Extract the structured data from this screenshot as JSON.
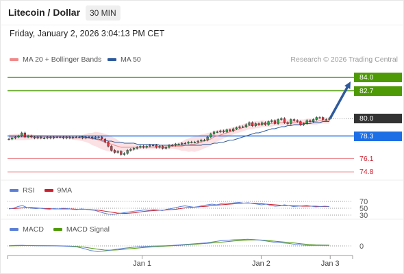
{
  "header": {
    "title": "Litecoin / Dollar",
    "interval": "30 MIN",
    "datetime": "Friday, January 2, 2026 3:04:13 PM CET"
  },
  "legend": {
    "ma20_label": "MA 20 + Bollinger Bands",
    "ma50_label": "MA 50",
    "credit": "Research © 2026 Trading Central",
    "rsi_label": "RSI",
    "rsi_ma_label": "9MA",
    "macd_label": "MACD",
    "macd_signal_label": "MACD Signal"
  },
  "colors": {
    "resistance": "#4e9a06",
    "current": "#333333",
    "pivot": "#1e6fe6",
    "support": "#e0303c",
    "ma20": "#f08a8a",
    "ma50": "#2e5a9c",
    "bollinger": "#fadadd",
    "arrow": "#2e5a9c",
    "rsi": "#5b7fd6",
    "rsi_ma": "#cc1f2e",
    "macd": "#5b7fd6",
    "macd_signal": "#4e9a06"
  },
  "chart_data": [
    {
      "type": "candlestick",
      "ylim": [
        74.0,
        85.0
      ],
      "levels": [
        {
          "label": "84.0",
          "value": 84.0,
          "kind": "resistance"
        },
        {
          "label": "82.7",
          "value": 82.7,
          "kind": "resistance"
        },
        {
          "label": "80.0",
          "value": 80.0,
          "kind": "current"
        },
        {
          "label": "78.3",
          "value": 78.3,
          "kind": "pivot"
        },
        {
          "label": "76.1",
          "value": 76.1,
          "kind": "support"
        },
        {
          "label": "74.8",
          "value": 74.8,
          "kind": "support"
        }
      ],
      "close": [
        78.0,
        78.1,
        78.2,
        78.3,
        78.6,
        78.2,
        78.3,
        78.2,
        78.1,
        78.2,
        78.1,
        78.1,
        78.2,
        78.1,
        78.2,
        78.2,
        78.2,
        78.1,
        78.2,
        78.1,
        78.2,
        78.2,
        78.2,
        78.1,
        78.2,
        78.2,
        78.1,
        78.2,
        78.2,
        78.0,
        77.7,
        77.3,
        76.9,
        76.7,
        76.8,
        76.5,
        76.6,
        76.9,
        77.0,
        77.1,
        77.2,
        77.3,
        77.2,
        77.3,
        77.4,
        77.4,
        77.2,
        77.3,
        77.1,
        77.2,
        77.4,
        77.4,
        77.5,
        77.5,
        77.6,
        77.6,
        77.7,
        77.7,
        77.7,
        77.8,
        77.9,
        77.9,
        78.2,
        78.5,
        78.7,
        78.7,
        78.8,
        78.7,
        78.9,
        78.8,
        79.0,
        79.1,
        79.2,
        79.2,
        79.4,
        79.6,
        79.3,
        79.5,
        79.4,
        79.6,
        79.4,
        79.7,
        79.8,
        79.5,
        79.9,
        80.0,
        79.6,
        79.5,
        79.9,
        79.8,
        79.7,
        79.4,
        79.5,
        79.8,
        79.7,
        79.9,
        80.1,
        80.1,
        79.9,
        79.9,
        80.0
      ],
      "ma20": [
        78.2,
        78.2,
        78.2,
        78.2,
        78.2,
        78.2,
        78.2,
        78.2,
        78.2,
        78.2,
        78.2,
        78.2,
        78.2,
        78.2,
        78.2,
        78.2,
        78.2,
        78.2,
        78.2,
        78.2,
        78.1,
        78.1,
        78.1,
        78.1,
        78.1,
        78.1,
        78.0,
        78.0,
        77.9,
        77.8,
        77.7,
        77.6,
        77.5,
        77.4,
        77.3,
        77.2,
        77.2,
        77.2,
        77.2,
        77.2,
        77.2,
        77.2,
        77.2,
        77.2,
        77.2,
        77.2,
        77.2,
        77.2,
        77.2,
        77.2,
        77.2,
        77.3,
        77.3,
        77.3,
        77.3,
        77.4,
        77.4,
        77.5,
        77.5,
        77.6,
        77.7,
        77.8,
        77.9,
        78.0,
        78.2,
        78.3,
        78.4,
        78.5,
        78.6,
        78.7,
        78.8,
        78.9,
        79.0,
        79.1,
        79.2,
        79.3,
        79.3,
        79.4,
        79.4,
        79.5,
        79.5,
        79.5,
        79.5,
        79.6,
        79.6,
        79.6,
        79.6,
        79.6,
        79.6,
        79.6,
        79.6,
        79.6,
        79.6,
        79.7,
        79.7,
        79.7,
        79.7,
        79.8,
        79.8,
        79.8,
        79.8
      ],
      "ma50": [
        78.3,
        78.3,
        78.3,
        78.3,
        78.3,
        78.3,
        78.3,
        78.3,
        78.3,
        78.3,
        78.3,
        78.3,
        78.3,
        78.3,
        78.3,
        78.3,
        78.3,
        78.3,
        78.3,
        78.3,
        78.3,
        78.3,
        78.3,
        78.2,
        78.2,
        78.1,
        78.1,
        78.0,
        78.0,
        77.9,
        77.9,
        77.8,
        77.8,
        77.7,
        77.7,
        77.7,
        77.6,
        77.6,
        77.6,
        77.6,
        77.5,
        77.5,
        77.5,
        77.5,
        77.5,
        77.5,
        77.5,
        77.4,
        77.4,
        77.4,
        77.4,
        77.4,
        77.4,
        77.4,
        77.4,
        77.4,
        77.4,
        77.4,
        77.4,
        77.4,
        77.4,
        77.5,
        77.5,
        77.5,
        77.6,
        77.6,
        77.7,
        77.7,
        77.8,
        77.9,
        77.9,
        78.0,
        78.1,
        78.2,
        78.3,
        78.4,
        78.5,
        78.6,
        78.6,
        78.7,
        78.8,
        78.9,
        79.0,
        79.0,
        79.1,
        79.2,
        79.2,
        79.3,
        79.3,
        79.4,
        79.4,
        79.4,
        79.5,
        79.5,
        79.5,
        79.6,
        79.6,
        79.6,
        79.7,
        79.7,
        79.7
      ],
      "band_width": [
        0.25,
        0.25,
        0.3,
        0.3,
        0.3,
        0.3,
        0.28,
        0.25,
        0.22,
        0.2,
        0.2,
        0.18,
        0.15,
        0.15,
        0.15,
        0.15,
        0.15,
        0.15,
        0.15,
        0.15,
        0.15,
        0.2,
        0.25,
        0.3,
        0.4,
        0.5,
        0.6,
        0.7,
        0.75,
        0.8,
        0.8,
        0.8,
        0.75,
        0.7,
        0.6,
        0.5,
        0.45,
        0.4,
        0.35,
        0.3,
        0.25,
        0.2,
        0.2,
        0.2,
        0.2,
        0.2,
        0.2,
        0.2,
        0.2,
        0.2,
        0.22,
        0.25,
        0.3,
        0.35,
        0.45,
        0.55,
        0.65,
        0.7,
        0.75,
        0.75,
        0.75,
        0.7,
        0.7,
        0.65,
        0.6,
        0.55,
        0.5,
        0.45,
        0.4,
        0.38,
        0.35,
        0.35,
        0.35,
        0.35,
        0.35,
        0.35,
        0.35,
        0.35,
        0.35,
        0.35,
        0.3,
        0.3,
        0.3,
        0.3,
        0.3,
        0.3,
        0.3,
        0.3,
        0.3,
        0.3,
        0.3,
        0.3,
        0.3,
        0.3,
        0.3,
        0.3,
        0.3,
        0.3,
        0.3,
        0.3,
        0.3
      ],
      "projection": {
        "from": 80.0,
        "to": 83.6
      }
    },
    {
      "type": "line",
      "name": "RSI",
      "ticks": [
        "70",
        "50",
        "30"
      ],
      "ylim": [
        20,
        80
      ],
      "rsi": [
        48,
        50,
        55,
        58,
        52,
        50,
        49,
        50,
        48,
        47,
        49,
        48,
        50,
        49,
        47,
        46,
        48,
        47,
        45,
        44,
        40,
        36,
        33,
        32,
        34,
        36,
        38,
        40,
        42,
        43,
        45,
        44,
        46,
        45,
        43,
        47,
        49,
        52,
        55,
        57,
        55,
        53,
        55,
        58,
        60,
        62,
        60,
        63,
        65,
        64,
        66,
        67,
        65,
        66,
        64,
        62,
        60,
        62,
        58,
        56,
        57,
        60,
        58,
        55,
        56,
        57,
        58,
        56,
        54,
        55,
        56,
        55
      ],
      "rsi_ma": [
        49,
        49,
        50,
        51,
        52,
        52,
        51,
        50,
        49,
        49,
        48,
        48,
        48,
        48,
        48,
        47,
        47,
        47,
        46,
        45,
        44,
        42,
        40,
        38,
        36,
        35,
        35,
        36,
        37,
        39,
        41,
        42,
        43,
        44,
        44,
        45,
        46,
        47,
        49,
        51,
        52,
        53,
        54,
        55,
        56,
        58,
        59,
        60,
        61,
        62,
        63,
        64,
        65,
        65,
        65,
        64,
        63,
        62,
        61,
        60,
        59,
        58,
        58,
        57,
        57,
        56,
        56,
        56,
        56,
        55,
        55,
        55
      ]
    },
    {
      "type": "line",
      "name": "MACD",
      "ticks": [
        "0"
      ],
      "ylim": [
        -1.2,
        1.2
      ],
      "macd": [
        0.02,
        0.05,
        0.06,
        0.03,
        0.02,
        0.01,
        0.02,
        0.0,
        -0.02,
        -0.05,
        -0.1,
        -0.25,
        -0.45,
        -0.55,
        -0.5,
        -0.4,
        -0.3,
        -0.22,
        -0.15,
        -0.08,
        -0.05,
        -0.02,
        0.0,
        0.02,
        0.05,
        0.1,
        0.15,
        0.2,
        0.25,
        0.3,
        0.4,
        0.5,
        0.55,
        0.6,
        0.62,
        0.65,
        0.62,
        0.55,
        0.45,
        0.35,
        0.3,
        0.25,
        0.15,
        0.08,
        0.05,
        0.05,
        0.06,
        0.05
      ],
      "signal": [
        0.0,
        0.02,
        0.03,
        0.04,
        0.03,
        0.03,
        0.02,
        0.02,
        0.0,
        -0.02,
        -0.06,
        -0.12,
        -0.22,
        -0.32,
        -0.4,
        -0.42,
        -0.38,
        -0.32,
        -0.26,
        -0.2,
        -0.14,
        -0.1,
        -0.06,
        -0.02,
        0.02,
        0.06,
        0.1,
        0.15,
        0.2,
        0.25,
        0.3,
        0.36,
        0.42,
        0.48,
        0.53,
        0.57,
        0.59,
        0.57,
        0.52,
        0.46,
        0.4,
        0.34,
        0.27,
        0.2,
        0.14,
        0.1,
        0.08,
        0.07
      ]
    }
  ],
  "xaxis": {
    "labels": [
      {
        "text": "Jan 1",
        "pos": 0.39
      },
      {
        "text": "Jan 2",
        "pos": 0.735
      },
      {
        "text": "Jan 3",
        "pos": 0.935
      }
    ]
  }
}
